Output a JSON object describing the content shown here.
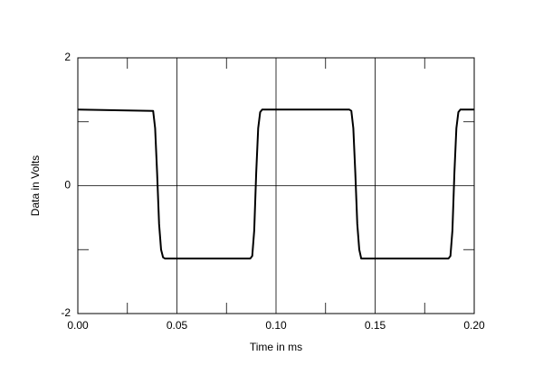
{
  "chart_data": {
    "type": "line",
    "xlabel": "Time in ms",
    "ylabel": "Data in Volts",
    "x": [
      0,
      0.038,
      0.039,
      0.04,
      0.041,
      0.042,
      0.043,
      0.044,
      0.087,
      0.088,
      0.089,
      0.09,
      0.091,
      0.092,
      0.093,
      0.137,
      0.138,
      0.139,
      0.14,
      0.141,
      0.142,
      0.143,
      0.187,
      0.188,
      0.189,
      0.19,
      0.191,
      0.192,
      0.193,
      0.2
    ],
    "series": [
      {
        "color": "#000000",
        "values": [
          1.19,
          1.17,
          0.9,
          0.2,
          -0.6,
          -1.0,
          -1.12,
          -1.14,
          -1.14,
          -1.1,
          -0.7,
          0.2,
          0.9,
          1.15,
          1.19,
          1.19,
          1.17,
          0.9,
          0.2,
          -0.6,
          -1.0,
          -1.14,
          -1.14,
          -1.1,
          -0.7,
          0.2,
          0.9,
          1.15,
          1.19,
          1.19
        ]
      }
    ],
    "xlim": [
      0,
      0.2
    ],
    "xticks": [
      {
        "value": 0,
        "label": "0.00"
      },
      0.05,
      {
        "value": 0.1,
        "label": "0.10"
      },
      0.15,
      {
        "value": 0.2,
        "label": "0.20"
      }
    ],
    "minor_xticks": [
      0.025,
      0.075,
      0.125,
      0.175
    ],
    "ylim": [
      -2,
      2
    ],
    "yticks": [
      -2,
      0,
      2
    ],
    "minor_yticks": [
      -1,
      1
    ],
    "grid": true
  }
}
